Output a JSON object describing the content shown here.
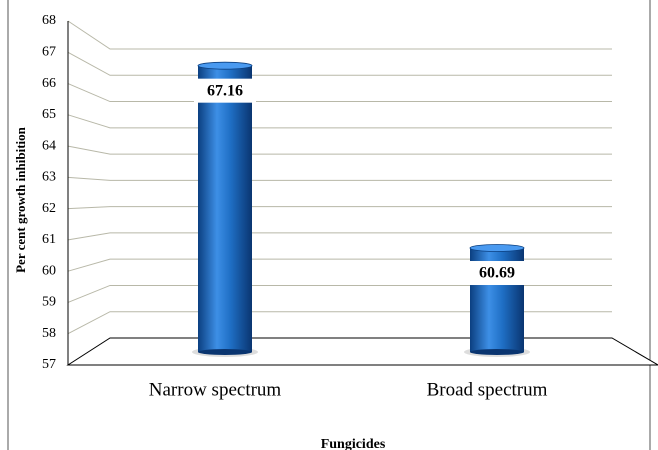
{
  "chart_data": {
    "type": "bar",
    "x_label": "Fungicides",
    "y_label": "Per cent growth inhibition",
    "categories": [
      "Narrow spectrum",
      "Broad spectrum"
    ],
    "values": [
      67.16,
      60.69
    ],
    "color": "#1f6fc5",
    "ylim": [
      57,
      68
    ],
    "yticks": [
      57,
      58,
      59,
      60,
      61,
      62,
      63,
      64,
      65,
      66,
      67,
      68
    ],
    "grid": true
  }
}
